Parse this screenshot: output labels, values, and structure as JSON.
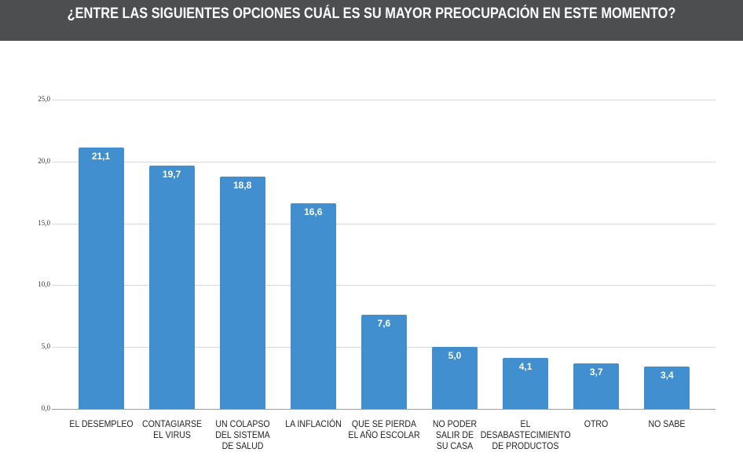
{
  "header": {
    "title": "¿ENTRE LAS SIGUIENTES OPCIONES CUÁL ES SU MAYOR PREOCUPACIÓN EN ESTE MOMENTO?"
  },
  "colors": {
    "bar": "#418fcf",
    "header_bg": "#4d4e50",
    "grid": "#d9d9d9"
  },
  "chart_data": {
    "type": "bar",
    "title": "¿ENTRE LAS SIGUIENTES OPCIONES CUÁL ES SU MAYOR PREOCUPACIÓN EN ESTE MOMENTO?",
    "xlabel": "",
    "ylabel": "",
    "ylim": [
      0,
      25
    ],
    "yticks": [
      0,
      5,
      10,
      15,
      20,
      25
    ],
    "ytick_labels": [
      "0,0",
      "5,0",
      "10,0",
      "15,0",
      "20,0",
      "25,0"
    ],
    "grid": true,
    "categories": [
      [
        "EL DESEMPLEO"
      ],
      [
        "CONTAGIARSE",
        "EL VIRUS"
      ],
      [
        "UN COLAPSO",
        "DEL SISTEMA",
        "DE SALUD"
      ],
      [
        "LA INFLACIÓN"
      ],
      [
        "QUE SE PIERDA",
        "EL AÑO ESCOLAR"
      ],
      [
        "NO PODER",
        "SALIR DE",
        "SU CASA"
      ],
      [
        "EL",
        "DESABASTECIMIENTO",
        "DE PRODUCTOS"
      ],
      [
        "OTRO"
      ],
      [
        "NO SABE"
      ]
    ],
    "values": [
      21.1,
      19.7,
      18.8,
      16.6,
      7.6,
      5.0,
      4.1,
      3.7,
      3.4
    ],
    "value_labels": [
      "21,1",
      "19,7",
      "18,8",
      "16,6",
      "7,6",
      "5,0",
      "4,1",
      "3,7",
      "3,4"
    ]
  }
}
